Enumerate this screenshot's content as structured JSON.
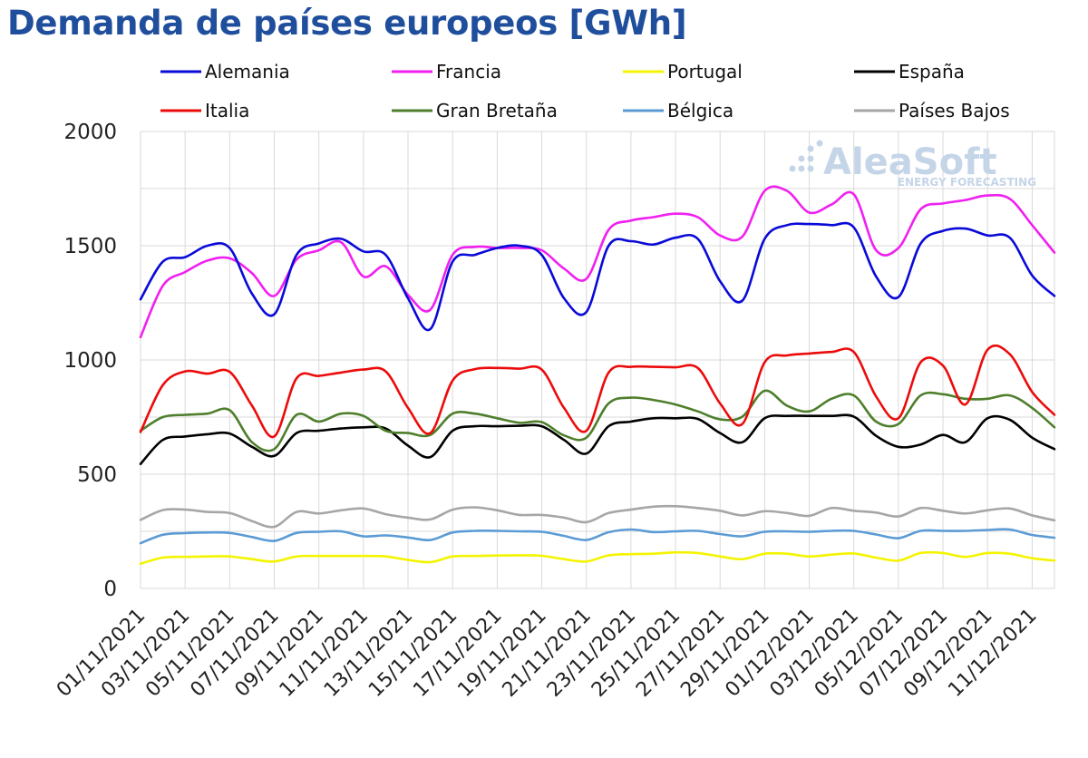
{
  "chart_data": {
    "type": "line",
    "title": "Demanda de países europeos [GWh]",
    "xlabel": "",
    "ylabel": "",
    "ylim": [
      0,
      2000
    ],
    "yticks": [
      0,
      500,
      1000,
      1500,
      2000
    ],
    "grid": true,
    "legend_position": "top",
    "watermark": {
      "name": "AleaSoft",
      "tagline": "ENERGY FORECASTING"
    },
    "x_tick_labels": [
      "01/11/2021",
      "03/11/2021",
      "05/11/2021",
      "07/11/2021",
      "09/11/2021",
      "11/11/2021",
      "13/11/2021",
      "15/11/2021",
      "17/11/2021",
      "19/11/2021",
      "21/11/2021",
      "23/11/2021",
      "25/11/2021",
      "27/11/2021",
      "29/11/2021",
      "01/12/2021",
      "03/12/2021",
      "05/12/2021",
      "07/12/2021",
      "09/12/2021",
      "11/12/2021"
    ],
    "x": [
      "01/11/2021",
      "02/11/2021",
      "03/11/2021",
      "04/11/2021",
      "05/11/2021",
      "06/11/2021",
      "07/11/2021",
      "08/11/2021",
      "09/11/2021",
      "10/11/2021",
      "11/11/2021",
      "12/11/2021",
      "13/11/2021",
      "14/11/2021",
      "15/11/2021",
      "16/11/2021",
      "17/11/2021",
      "18/11/2021",
      "19/11/2021",
      "20/11/2021",
      "21/11/2021",
      "22/11/2021",
      "23/11/2021",
      "24/11/2021",
      "25/11/2021",
      "26/11/2021",
      "27/11/2021",
      "28/11/2021",
      "29/11/2021",
      "30/11/2021",
      "01/12/2021",
      "02/12/2021",
      "03/12/2021",
      "04/12/2021",
      "05/12/2021",
      "06/12/2021",
      "07/12/2021",
      "08/12/2021",
      "09/12/2021",
      "10/12/2021",
      "11/12/2021",
      "12/12/2021"
    ],
    "series": [
      {
        "name": "Alemania",
        "color": "#0a0ad8",
        "values": [
          1265,
          1430,
          1450,
          1500,
          1490,
          1290,
          1200,
          1460,
          1510,
          1530,
          1475,
          1460,
          1270,
          1135,
          1430,
          1460,
          1490,
          1500,
          1460,
          1270,
          1210,
          1500,
          1520,
          1505,
          1535,
          1530,
          1345,
          1260,
          1530,
          1590,
          1595,
          1590,
          1580,
          1365,
          1275,
          1510,
          1565,
          1575,
          1545,
          1535,
          1370,
          1280
        ]
      },
      {
        "name": "Francia",
        "color": "#f020f0",
        "values": [
          1100,
          1325,
          1385,
          1435,
          1445,
          1380,
          1280,
          1440,
          1480,
          1515,
          1365,
          1410,
          1285,
          1220,
          1460,
          1495,
          1490,
          1490,
          1480,
          1400,
          1355,
          1570,
          1610,
          1625,
          1640,
          1625,
          1545,
          1540,
          1740,
          1740,
          1645,
          1680,
          1725,
          1480,
          1490,
          1660,
          1685,
          1700,
          1720,
          1705,
          1590,
          1470
        ]
      },
      {
        "name": "Portugal",
        "color": "#f4f400",
        "values": [
          108,
          135,
          138,
          140,
          140,
          128,
          118,
          140,
          142,
          142,
          142,
          140,
          125,
          115,
          140,
          142,
          144,
          145,
          143,
          128,
          118,
          145,
          150,
          152,
          158,
          155,
          140,
          128,
          152,
          152,
          140,
          148,
          153,
          135,
          122,
          155,
          155,
          138,
          155,
          152,
          132,
          122
        ]
      },
      {
        "name": "España",
        "color": "#000000",
        "values": [
          545,
          650,
          665,
          675,
          678,
          620,
          580,
          680,
          690,
          700,
          705,
          700,
          625,
          575,
          690,
          710,
          710,
          712,
          710,
          650,
          590,
          710,
          730,
          745,
          745,
          742,
          680,
          640,
          745,
          755,
          755,
          755,
          752,
          668,
          620,
          630,
          672,
          640,
          745,
          738,
          660,
          610
        ]
      },
      {
        "name": "Italia",
        "color": "#ec0b0b",
        "values": [
          685,
          890,
          950,
          940,
          948,
          800,
          665,
          920,
          930,
          945,
          958,
          950,
          790,
          680,
          910,
          960,
          965,
          962,
          958,
          790,
          690,
          945,
          970,
          970,
          968,
          965,
          810,
          720,
          990,
          1020,
          1028,
          1035,
          1035,
          840,
          745,
          990,
          975,
          805,
          1045,
          1025,
          860,
          760
        ]
      },
      {
        "name": "Gran Bretaña",
        "color": "#4e7f2c",
        "values": [
          690,
          750,
          760,
          765,
          780,
          640,
          610,
          760,
          730,
          765,
          755,
          690,
          680,
          672,
          765,
          765,
          745,
          725,
          728,
          670,
          660,
          810,
          835,
          825,
          805,
          775,
          740,
          752,
          865,
          800,
          775,
          830,
          845,
          730,
          720,
          845,
          850,
          830,
          830,
          845,
          790,
          705
        ]
      },
      {
        "name": "Bélgica",
        "color": "#5b9bd5",
        "values": [
          198,
          235,
          242,
          245,
          243,
          225,
          208,
          243,
          248,
          250,
          228,
          232,
          223,
          212,
          245,
          252,
          252,
          250,
          248,
          230,
          212,
          246,
          258,
          247,
          250,
          252,
          238,
          228,
          248,
          250,
          248,
          252,
          252,
          236,
          220,
          252,
          252,
          252,
          256,
          258,
          234,
          222
        ]
      },
      {
        "name": "Países Bajos",
        "color": "#a6a6a6",
        "values": [
          300,
          343,
          345,
          335,
          330,
          295,
          270,
          335,
          328,
          342,
          350,
          325,
          310,
          302,
          345,
          355,
          342,
          322,
          322,
          310,
          290,
          330,
          345,
          358,
          360,
          352,
          340,
          320,
          338,
          330,
          318,
          352,
          340,
          332,
          315,
          352,
          340,
          328,
          342,
          350,
          320,
          298
        ]
      }
    ]
  }
}
